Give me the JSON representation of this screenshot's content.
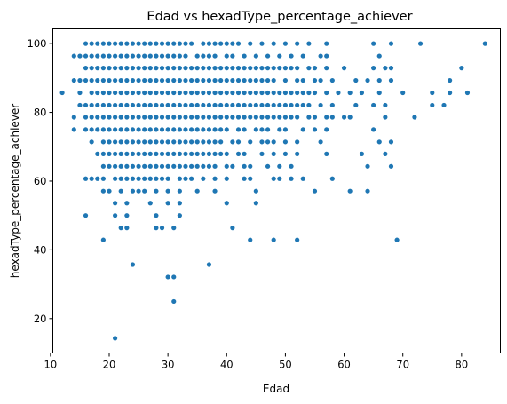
{
  "chart_data": {
    "type": "scatter",
    "title": "Edad vs hexadType_percentage_achiever",
    "xlabel": "Edad",
    "ylabel": "hexadType_percentage_achiever",
    "xlim": [
      10.4,
      86.6
    ],
    "ylim": [
      10.0,
      104.3
    ],
    "xticks": [
      10,
      20,
      30,
      40,
      50,
      60,
      70,
      80
    ],
    "yticks": [
      20,
      40,
      60,
      80,
      100
    ],
    "color": "#1f77b4",
    "grid": false,
    "legend": "none",
    "levels": [
      14.3,
      25.0,
      32.1,
      35.7,
      42.9,
      46.4,
      50.0,
      53.6,
      57.1,
      60.7,
      64.3,
      67.9,
      71.4,
      75.0,
      78.6,
      82.1,
      85.7,
      89.3,
      92.9,
      96.4,
      100.0
    ],
    "rows": [
      {
        "y": 100.0,
        "x": [
          16,
          17,
          18,
          19,
          20,
          21,
          22,
          23,
          24,
          25,
          26,
          27,
          28,
          29,
          30,
          31,
          32,
          33,
          34,
          36,
          37,
          38,
          39,
          40,
          41,
          42,
          44,
          46,
          48,
          50,
          52,
          54,
          57,
          65,
          68,
          73,
          84
        ]
      },
      {
        "y": 96.4,
        "x": [
          14,
          15,
          16,
          17,
          18,
          19,
          20,
          21,
          22,
          23,
          24,
          25,
          26,
          27,
          28,
          29,
          30,
          31,
          32,
          33,
          35,
          36,
          37,
          38,
          40,
          41,
          43,
          45,
          47,
          49,
          51,
          53,
          56,
          57,
          66
        ]
      },
      {
        "y": 92.9,
        "x": [
          16,
          17,
          18,
          19,
          20,
          21,
          22,
          23,
          24,
          25,
          26,
          27,
          28,
          29,
          30,
          31,
          32,
          33,
          34,
          35,
          36,
          37,
          38,
          39,
          40,
          41,
          42,
          43,
          44,
          45,
          46,
          47,
          48,
          49,
          50,
          51,
          52,
          54,
          55,
          57,
          60,
          65,
          67,
          68,
          80
        ]
      },
      {
        "y": 89.3,
        "x": [
          14,
          15,
          16,
          17,
          18,
          19,
          20,
          21,
          22,
          23,
          24,
          25,
          26,
          27,
          28,
          29,
          30,
          31,
          32,
          33,
          34,
          35,
          36,
          37,
          38,
          39,
          40,
          41,
          42,
          43,
          44,
          45,
          46,
          47,
          48,
          50,
          52,
          53,
          55,
          56,
          58,
          62,
          64,
          66,
          68,
          78
        ]
      },
      {
        "y": 85.7,
        "x": [
          12,
          15,
          17,
          18,
          19,
          20,
          21,
          22,
          23,
          24,
          25,
          26,
          27,
          28,
          29,
          30,
          31,
          32,
          33,
          34,
          35,
          36,
          37,
          38,
          39,
          40,
          41,
          42,
          43,
          44,
          45,
          46,
          47,
          48,
          49,
          50,
          51,
          52,
          53,
          54,
          55,
          57,
          59,
          61,
          63,
          66,
          70,
          75,
          78,
          81
        ]
      },
      {
        "y": 82.1,
        "x": [
          15,
          16,
          17,
          18,
          19,
          20,
          21,
          22,
          23,
          24,
          25,
          26,
          27,
          28,
          29,
          30,
          31,
          32,
          33,
          34,
          35,
          36,
          37,
          38,
          39,
          40,
          41,
          42,
          43,
          44,
          45,
          46,
          47,
          48,
          49,
          50,
          51,
          52,
          53,
          54,
          56,
          58,
          62,
          65,
          67,
          75,
          77
        ]
      },
      {
        "y": 78.6,
        "x": [
          14,
          16,
          17,
          18,
          19,
          20,
          21,
          22,
          23,
          24,
          25,
          26,
          27,
          28,
          29,
          30,
          31,
          32,
          33,
          34,
          35,
          36,
          37,
          38,
          39,
          40,
          41,
          42,
          43,
          44,
          45,
          46,
          47,
          48,
          49,
          50,
          51,
          52,
          54,
          55,
          57,
          58,
          60,
          61,
          67,
          72
        ]
      },
      {
        "y": 75.0,
        "x": [
          14,
          16,
          17,
          18,
          19,
          20,
          21,
          22,
          23,
          24,
          25,
          26,
          27,
          28,
          29,
          30,
          31,
          32,
          33,
          34,
          35,
          36,
          37,
          38,
          39,
          40,
          42,
          43,
          45,
          46,
          47,
          49,
          50,
          53,
          55,
          57,
          65
        ]
      },
      {
        "y": 71.4,
        "x": [
          17,
          19,
          20,
          21,
          22,
          23,
          24,
          25,
          26,
          27,
          28,
          29,
          30,
          31,
          32,
          33,
          34,
          35,
          36,
          37,
          38,
          39,
          41,
          42,
          44,
          46,
          47,
          48,
          50,
          52,
          56,
          66,
          68
        ]
      },
      {
        "y": 67.9,
        "x": [
          18,
          19,
          20,
          21,
          22,
          23,
          24,
          25,
          26,
          27,
          28,
          29,
          30,
          31,
          32,
          33,
          34,
          35,
          36,
          37,
          38,
          39,
          40,
          42,
          43,
          46,
          48,
          50,
          52,
          57,
          63,
          67
        ]
      },
      {
        "y": 64.3,
        "x": [
          19,
          20,
          21,
          22,
          23,
          24,
          25,
          26,
          27,
          28,
          29,
          30,
          31,
          32,
          33,
          34,
          35,
          36,
          37,
          38,
          40,
          41,
          43,
          44,
          47,
          49,
          51,
          64,
          68
        ]
      },
      {
        "y": 60.7,
        "x": [
          16,
          17,
          18,
          19,
          21,
          22,
          23,
          24,
          25,
          26,
          27,
          28,
          29,
          30,
          32,
          33,
          34,
          36,
          38,
          40,
          43,
          44,
          48,
          49,
          51,
          53,
          58
        ]
      },
      {
        "y": 57.1,
        "x": [
          19,
          20,
          22,
          24,
          25,
          26,
          28,
          30,
          32,
          35,
          38,
          45,
          55,
          61,
          64
        ]
      },
      {
        "y": 53.6,
        "x": [
          21,
          23,
          27,
          30,
          32,
          40,
          45
        ]
      },
      {
        "y": 50.0,
        "x": [
          16,
          21,
          23,
          28,
          32
        ]
      },
      {
        "y": 46.4,
        "x": [
          22,
          23,
          28,
          29,
          31,
          41
        ]
      },
      {
        "y": 42.9,
        "x": [
          19,
          44,
          48,
          52,
          69
        ]
      },
      {
        "y": 35.7,
        "x": [
          24,
          37
        ]
      },
      {
        "y": 32.1,
        "x": [
          30,
          31
        ]
      },
      {
        "y": 25.0,
        "x": [
          31
        ]
      },
      {
        "y": 14.3,
        "x": [
          21
        ]
      }
    ]
  }
}
